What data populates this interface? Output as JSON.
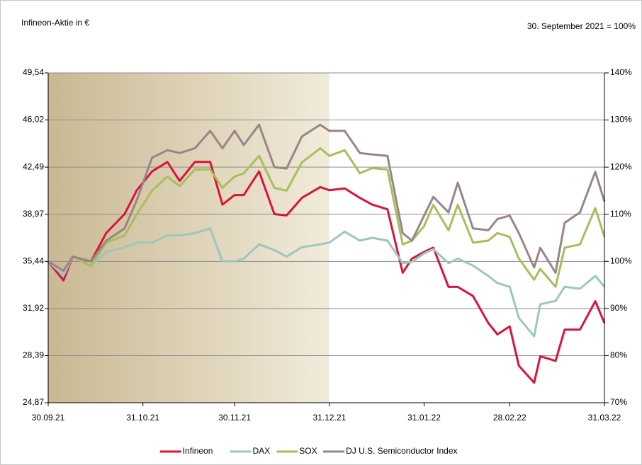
{
  "chart_data": {
    "type": "line",
    "title": "Infineon-Aktie in €",
    "subtitle": "30. September 2021 = 100%",
    "highlight": [
      "30.09.21",
      "31.12.21"
    ],
    "grid": true,
    "legend": "bottom",
    "x": [
      "30.09.21",
      "05.10.21",
      "08.10.21",
      "14.10.21",
      "19.10.21",
      "25.10.21",
      "29.10.21",
      "03.11.21",
      "08.11.21",
      "12.11.21",
      "17.11.21",
      "22.11.21",
      "26.11.21",
      "30.11.21",
      "03.12.21",
      "08.12.21",
      "13.12.21",
      "17.12.21",
      "22.12.21",
      "28.12.21",
      "31.12.21",
      "05.01.22",
      "10.01.22",
      "14.01.22",
      "19.01.22",
      "24.01.22",
      "27.01.22",
      "31.01.22",
      "03.02.22",
      "08.02.22",
      "11.02.22",
      "16.02.22",
      "21.02.22",
      "24.02.22",
      "28.02.22",
      "03.03.22",
      "08.03.22",
      "10.03.22",
      "15.03.22",
      "18.03.22",
      "23.03.22",
      "28.03.22",
      "31.03.22"
    ],
    "xlim": [
      "30.09.21",
      "31.03.22"
    ],
    "xticks": [
      "30.09.21",
      "31.10.21",
      "30.11.21",
      "31.12.21",
      "31.01.22",
      "28.02.22",
      "31.03.22"
    ],
    "ylim": [
      24.87,
      49.54
    ],
    "yticks": [
      {
        "value": 24.87,
        "label": "24,87"
      },
      {
        "value": 28.39,
        "label": "28,39"
      },
      {
        "value": 31.92,
        "label": "31,92"
      },
      {
        "value": 35.44,
        "label": "35,44"
      },
      {
        "value": 38.97,
        "label": "38,97"
      },
      {
        "value": 42.49,
        "label": "42,49"
      },
      {
        "value": 46.02,
        "label": "46,02"
      },
      {
        "value": 49.54,
        "label": "49,54"
      }
    ],
    "y2lim": [
      70,
      140
    ],
    "y2ticks": [
      {
        "value": 70,
        "label": "70%"
      },
      {
        "value": 80,
        "label": "80%"
      },
      {
        "value": 90,
        "label": "90%"
      },
      {
        "value": 100,
        "label": "100%"
      },
      {
        "value": 110,
        "label": "110%"
      },
      {
        "value": 120,
        "label": "120%"
      },
      {
        "value": 130,
        "label": "130%"
      },
      {
        "value": 140,
        "label": "140%"
      }
    ],
    "series": [
      {
        "name": "Infineon",
        "color": "#d9143a",
        "axis": "y",
        "values": [
          35.44,
          34.02,
          35.79,
          35.44,
          37.57,
          38.98,
          40.76,
          42.17,
          42.88,
          41.46,
          42.88,
          42.88,
          39.69,
          40.4,
          40.4,
          42.17,
          38.98,
          38.88,
          40.19,
          41.0,
          40.76,
          40.9,
          40.19,
          39.69,
          39.34,
          34.59,
          35.65,
          36.15,
          36.47,
          33.53,
          33.53,
          32.85,
          30.83,
          29.98,
          30.58,
          27.64,
          26.37,
          28.35,
          28.0,
          30.34,
          30.34,
          32.46,
          30.83
        ]
      },
      {
        "name": "DAX",
        "color": "#9cc7bd",
        "axis": "y2",
        "values": [
          100,
          97,
          101,
          99,
          102,
          103,
          104,
          104,
          105.5,
          105.5,
          106,
          107,
          100,
          100,
          100.6,
          103.6,
          102.4,
          101,
          103,
          103.6,
          104,
          106.3,
          104.4,
          105,
          104.4,
          99.6,
          99.9,
          101.7,
          102.6,
          99.6,
          100.6,
          99.1,
          96.9,
          95.4,
          94.6,
          88,
          84.1,
          90.9,
          91.6,
          94.6,
          94.2,
          96.9,
          94.6
        ]
      },
      {
        "name": "SOX",
        "color": "#a6bf5a",
        "axis": "y2",
        "values": [
          100,
          98,
          101,
          99,
          104,
          105.5,
          110,
          115,
          118,
          116,
          119.5,
          119.5,
          115.6,
          118,
          118.7,
          122.4,
          115.6,
          115,
          121,
          124,
          122.4,
          123.6,
          118.7,
          119.8,
          119.5,
          103.6,
          104.4,
          107.5,
          112,
          106.6,
          112,
          104,
          104.4,
          106,
          105.2,
          100.6,
          96.1,
          98.4,
          94.6,
          102.9,
          103.6,
          111.3,
          105.2
        ]
      },
      {
        "name": "DJ U.S. Semiconductor Index",
        "color": "#9a8486",
        "axis": "y2",
        "values": [
          100,
          98,
          101,
          100,
          104.4,
          107,
          113,
          122,
          123.6,
          123,
          124,
          127.7,
          124,
          127.7,
          124.7,
          129,
          120,
          119.7,
          126.5,
          129,
          127.7,
          127.7,
          123,
          122.7,
          122.4,
          106,
          104.4,
          109.7,
          113.7,
          110.4,
          116.7,
          107,
          106.6,
          109,
          109.7,
          106,
          98.7,
          102.9,
          97.6,
          108.2,
          110.4,
          119,
          112.7
        ]
      }
    ]
  }
}
